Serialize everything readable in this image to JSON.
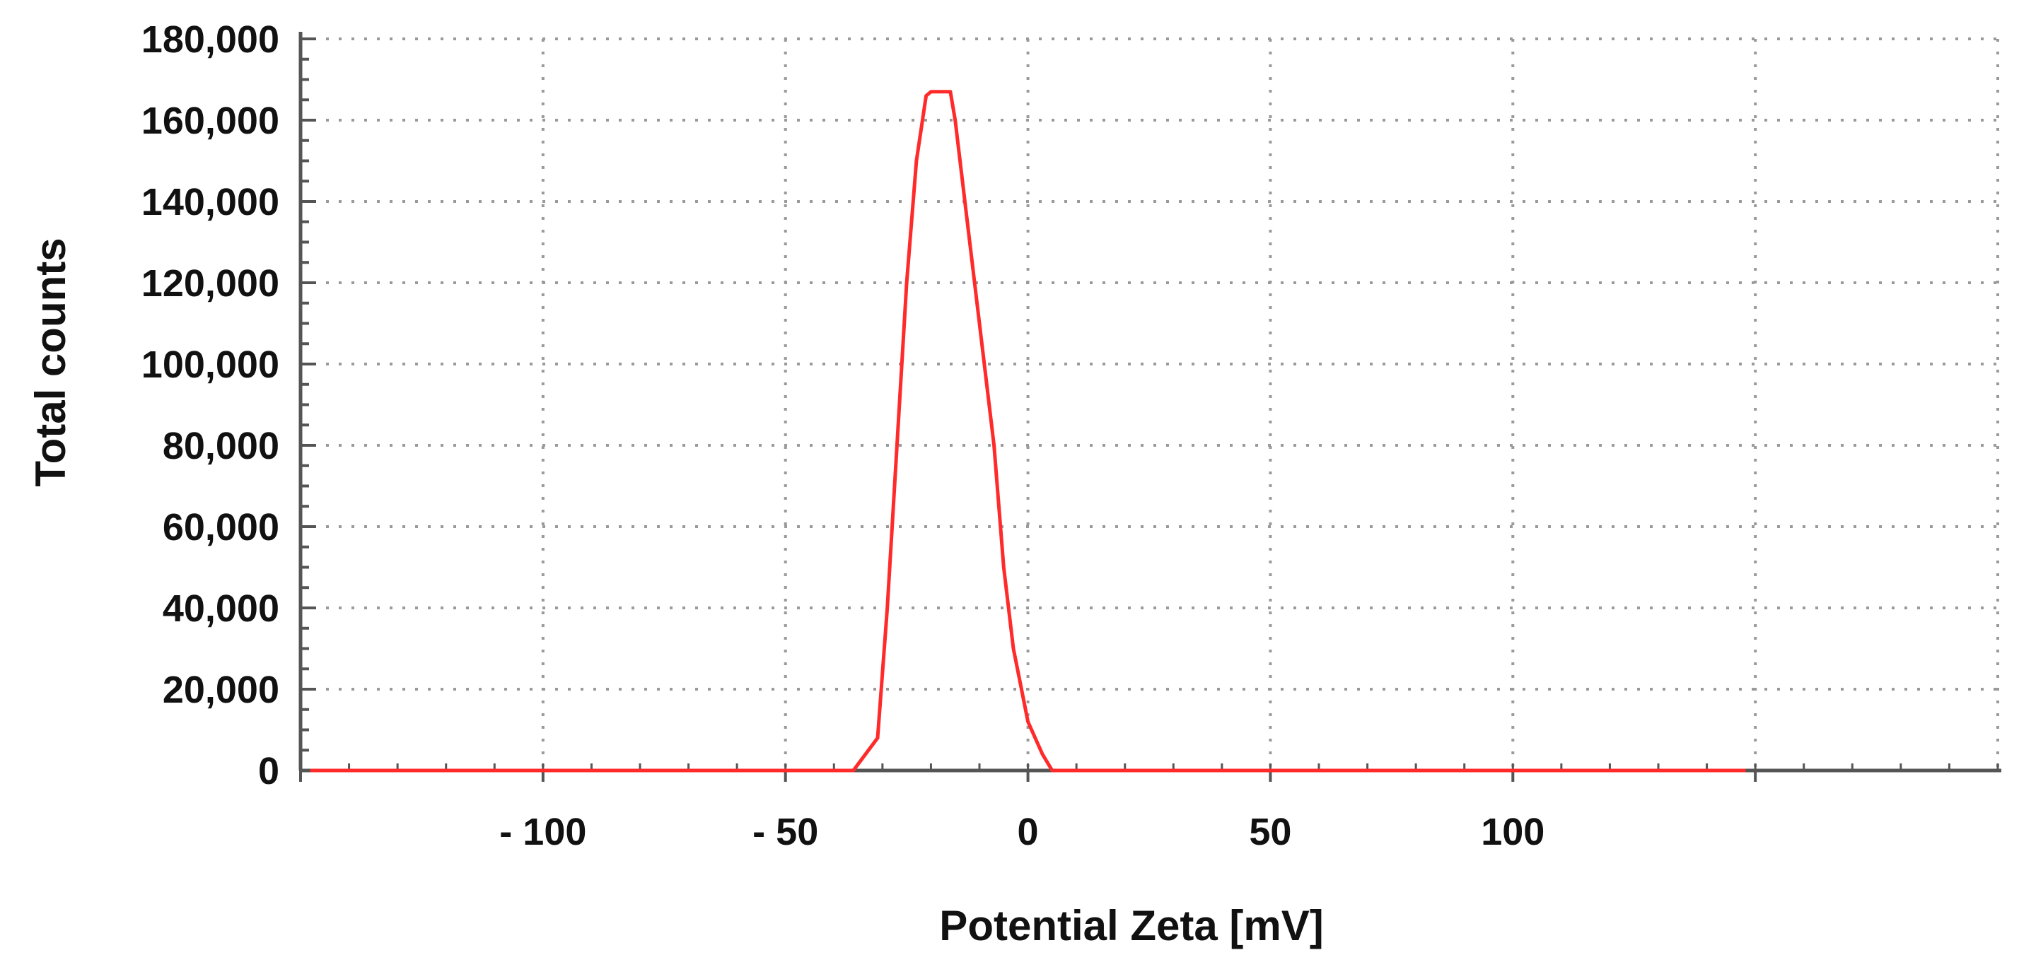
{
  "chart_data": {
    "type": "line",
    "title": "",
    "xlabel": "Potential Zeta [mV]",
    "ylabel": "Total counts",
    "xlim": [
      -150,
      200
    ],
    "ylim": [
      0,
      180000
    ],
    "x_ticks": [
      -100,
      -50,
      0,
      50,
      100
    ],
    "x_tick_labels": [
      "- 100",
      "- 50",
      "0",
      "50",
      "100"
    ],
    "x_gridlines": [
      -100,
      -50,
      0,
      50,
      100,
      150
    ],
    "x_major_marks": [
      -150,
      -100,
      -50,
      0,
      50,
      100,
      150
    ],
    "y_ticks": [
      0,
      20000,
      40000,
      60000,
      80000,
      100000,
      120000,
      140000,
      160000,
      180000
    ],
    "y_tick_labels": [
      "0",
      "20,000",
      "40,000",
      "60,000",
      "80,000",
      "100,000",
      "120,000",
      "140,000",
      "160,000",
      "180,000"
    ],
    "grid": true,
    "legend": "none",
    "series": [
      {
        "color": "#ff2a2a",
        "x": [
          -148,
          -100,
          -50,
          -36,
          -31,
          -29,
          -27,
          -25,
          -23,
          -21,
          -20,
          -16,
          -15,
          -13,
          -10,
          -7,
          -5,
          -3,
          0,
          3,
          5,
          100,
          148
        ],
        "y": [
          0,
          0,
          0,
          0,
          8000,
          40000,
          80000,
          120000,
          150000,
          166000,
          167000,
          167000,
          160000,
          140000,
          110000,
          80000,
          50000,
          30000,
          12000,
          4000,
          0,
          0,
          0
        ]
      }
    ]
  },
  "colors": {
    "axis": "#555555",
    "grid": "#9a9a9a",
    "background": "#ffffff"
  }
}
